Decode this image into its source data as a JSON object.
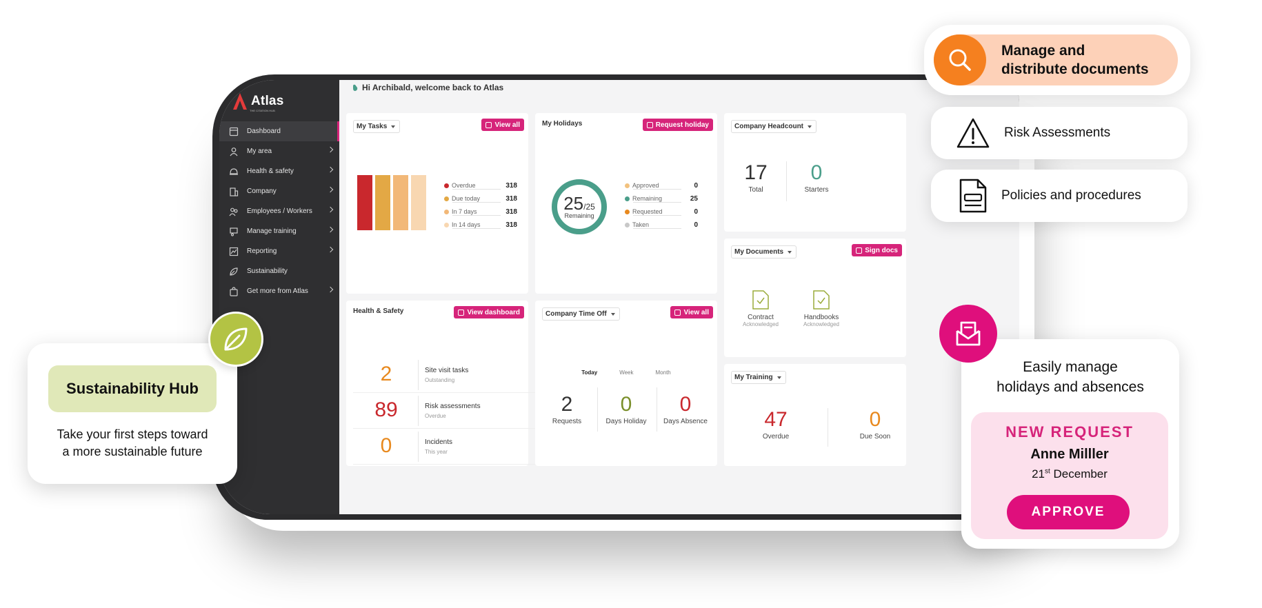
{
  "colors": {
    "brand_pink": "#d6247a",
    "sidebar": "#2f2f31",
    "teal": "#4a9e8a",
    "orange": "#e8891e",
    "red": "#c9282d",
    "olive": "#7a8f2a",
    "green_lime": "#b8c84a",
    "peach": "#fdd1b8"
  },
  "app": {
    "logo_text": "Atlas",
    "logo_tagline": "THE CITATION HUB",
    "welcome": "Hi Archibald, welcome back to Atlas"
  },
  "sidebar": {
    "items": [
      {
        "label": "Dashboard",
        "icon": "dashboard-icon",
        "active": true,
        "has_chevron": false
      },
      {
        "label": "My area",
        "icon": "user-icon",
        "has_chevron": true
      },
      {
        "label": "Health & safety",
        "icon": "hard-hat-icon",
        "has_chevron": true
      },
      {
        "label": "Company",
        "icon": "building-icon",
        "has_chevron": true
      },
      {
        "label": "Employees / Workers",
        "icon": "people-icon",
        "has_chevron": true
      },
      {
        "label": "Manage training",
        "icon": "training-icon",
        "has_chevron": true
      },
      {
        "label": "Reporting",
        "icon": "chart-icon",
        "has_chevron": true
      },
      {
        "label": "Sustainability",
        "icon": "leaf-icon",
        "has_chevron": false
      },
      {
        "label": "Get more from Atlas",
        "icon": "bag-icon",
        "has_chevron": true
      }
    ]
  },
  "tasks": {
    "title": "My Tasks",
    "button": "View all",
    "bars": [
      {
        "color": "#c9282d",
        "value": 318
      },
      {
        "color": "#e3a845",
        "value": 318
      },
      {
        "color": "#f2b878",
        "value": 318
      },
      {
        "color": "#f8d7b1",
        "value": 318
      }
    ],
    "legend": [
      {
        "label": "Overdue",
        "value": "318",
        "color": "#c9282d"
      },
      {
        "label": "Due today",
        "value": "318",
        "color": "#e3a845"
      },
      {
        "label": "In 7 days",
        "value": "318",
        "color": "#f2b878"
      },
      {
        "label": "In 14 days",
        "value": "318",
        "color": "#f8d7b1"
      }
    ]
  },
  "holidays": {
    "title": "My Holidays",
    "button": "Request holiday",
    "remaining_big": "25",
    "remaining_total": "/25",
    "remaining_label": "Remaining",
    "remaining_fraction": 1.0,
    "legend": [
      {
        "label": "Approved",
        "value": "0",
        "color": "#f2c27f"
      },
      {
        "label": "Remaining",
        "value": "25",
        "color": "#4a9e8a"
      },
      {
        "label": "Requested",
        "value": "0",
        "color": "#e8891e"
      },
      {
        "label": "Taken",
        "value": "0",
        "color": "#c8c8c8"
      }
    ]
  },
  "headcount": {
    "title": "Company Headcount",
    "total": "17",
    "total_label": "Total",
    "starters": "0",
    "starters_label": "Starters"
  },
  "documents": {
    "title": "My Documents",
    "button": "Sign docs",
    "items": [
      {
        "name": "Contract",
        "status": "Acknowledged"
      },
      {
        "name": "Handbooks",
        "status": "Acknowledged"
      }
    ]
  },
  "health": {
    "title": "Health & Safety",
    "button": "View dashboard",
    "rows": [
      {
        "value": "2",
        "title": "Site visit tasks",
        "sub": "Outstanding",
        "color": "#e8891e"
      },
      {
        "value": "89",
        "title": "Risk assessments",
        "sub": "Overdue",
        "color": "#c9282d"
      },
      {
        "value": "0",
        "title": "Incidents",
        "sub": "This year",
        "color": "#e8891e"
      }
    ]
  },
  "timeoff": {
    "title": "Company Time Off",
    "button": "View all",
    "tabs": [
      "Today",
      "Week",
      "Month"
    ],
    "stats": [
      {
        "value": "2",
        "label": "Requests",
        "color": "#333"
      },
      {
        "value": "0",
        "label": "Days Holiday",
        "color": "#7a8f2a"
      },
      {
        "value": "0",
        "label": "Days Absence",
        "color": "#c9282d"
      }
    ]
  },
  "training": {
    "title": "My Training",
    "overdue": "47",
    "overdue_label": "Overdue",
    "due_soon": "0",
    "due_soon_label": "Due Soon"
  },
  "features": [
    {
      "text1": "Manage and",
      "text2": "distribute documents",
      "icon": "search-icon"
    },
    {
      "text": "Risk Assessments",
      "icon": "warning-icon"
    },
    {
      "text": "Policies and procedures",
      "icon": "document-icon"
    }
  ],
  "sustain": {
    "title": "Sustainability Hub",
    "desc1": "Take your first steps toward",
    "desc2": "a more sustainable future"
  },
  "holiday_promo": {
    "title1": "Easily manage",
    "title2": "holidays and absences",
    "label": "NEW REQUEST",
    "name": "Anne Milller",
    "date_day": "21",
    "date_suffix": "st",
    "date_month": " December",
    "button": "APPROVE"
  }
}
